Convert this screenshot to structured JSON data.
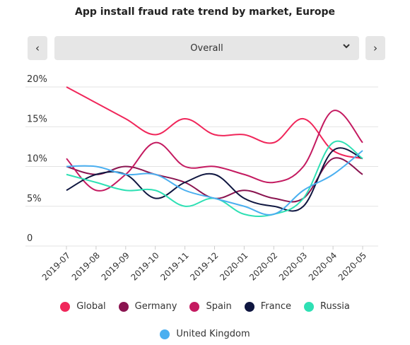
{
  "title": "App install fraud rate trend by market, Europe",
  "nav": {
    "prev_icon": "‹",
    "next_icon": "›"
  },
  "filter": {
    "selected": "Overall",
    "chevron_icon": "chevron-down"
  },
  "chart_data": {
    "type": "line",
    "title": "App install fraud rate trend by market, Europe",
    "xlabel": "",
    "ylabel": "",
    "ylim": [
      0,
      20
    ],
    "yticks": [
      0,
      5,
      10,
      15,
      20
    ],
    "ytick_labels": [
      "0",
      "5%",
      "10%",
      "15%",
      "20%"
    ],
    "categories": [
      "2019-07",
      "2019-08",
      "2019-09",
      "2019-10",
      "2019-11",
      "2019-12",
      "2020-01",
      "2020-02",
      "2020-03",
      "2020-04",
      "2020-05"
    ],
    "grid": true,
    "legend_position": "bottom",
    "series": [
      {
        "name": "Global",
        "color": "#f0265a",
        "values": [
          20,
          18,
          16,
          14,
          16,
          14,
          14,
          13,
          16,
          12,
          11
        ]
      },
      {
        "name": "Germany",
        "color": "#8a1450",
        "values": [
          10,
          9,
          10,
          9,
          8,
          6,
          7,
          6,
          6,
          11,
          9
        ]
      },
      {
        "name": "Spain",
        "color": "#c41a60",
        "values": [
          11,
          7,
          9,
          13,
          10,
          10,
          9,
          8,
          10,
          17,
          13
        ]
      },
      {
        "name": "France",
        "color": "#0f1640",
        "values": [
          7,
          9,
          9,
          6,
          8,
          9,
          6,
          5,
          5,
          12,
          11
        ]
      },
      {
        "name": "Russia",
        "color": "#2ee0b4",
        "values": [
          9,
          8,
          7,
          7,
          5,
          6,
          4,
          4,
          6,
          13,
          11
        ]
      },
      {
        "name": "United Kingdom",
        "color": "#4aaff0",
        "values": [
          10,
          10,
          9,
          9,
          7,
          6,
          5,
          4,
          7,
          9,
          12
        ]
      }
    ]
  }
}
